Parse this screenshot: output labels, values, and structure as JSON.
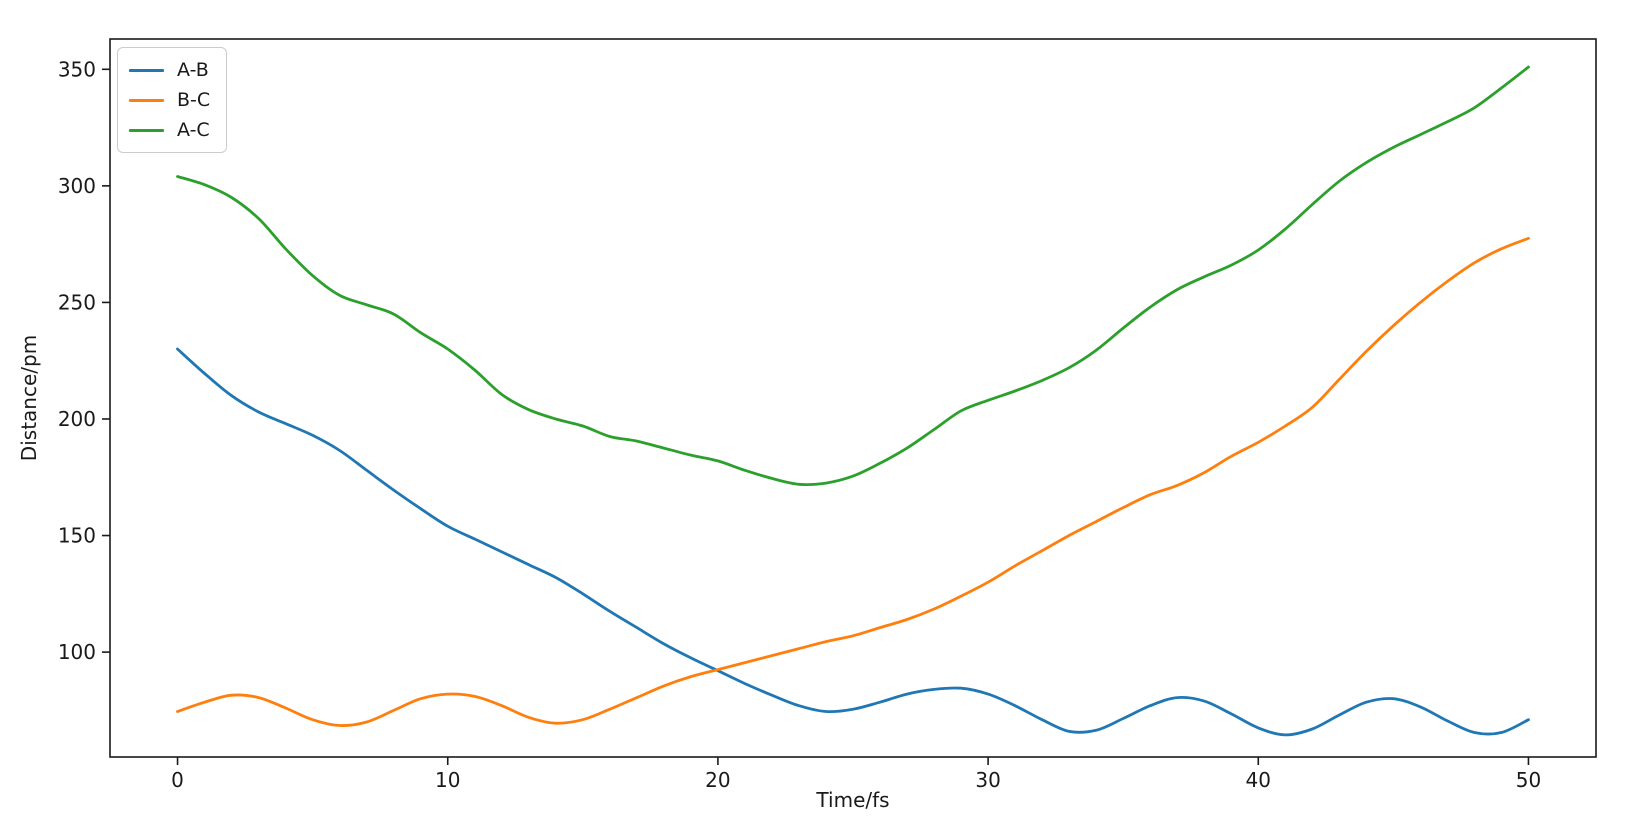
{
  "figure": {
    "background_color": "#ffffff",
    "frame_color": "#1a1a1a",
    "text_color": "#1a1a1a"
  },
  "chart_data": {
    "type": "line",
    "title": "",
    "xlabel": "Time/fs",
    "ylabel": "Distance/pm",
    "xlim": [
      -2.5,
      52.5
    ],
    "ylim": [
      55,
      363
    ],
    "x_ticks": [
      0,
      10,
      20,
      30,
      40,
      50
    ],
    "y_ticks": [
      100,
      150,
      200,
      250,
      300,
      350
    ],
    "grid": false,
    "legend_position": "upper-left",
    "x": [
      0,
      1,
      2,
      3,
      4,
      5,
      6,
      7,
      8,
      9,
      10,
      11,
      12,
      13,
      14,
      15,
      16,
      17,
      18,
      19,
      20,
      21,
      22,
      23,
      24,
      25,
      26,
      27,
      28,
      29,
      30,
      31,
      32,
      33,
      34,
      35,
      36,
      37,
      38,
      39,
      40,
      41,
      42,
      43,
      44,
      45,
      46,
      47,
      48,
      49,
      50
    ],
    "series": [
      {
        "name": "A-B",
        "color": "#1f77b4",
        "values": [
          230,
          219.5,
          210,
          203,
          198,
          193,
          186.5,
          178,
          169.5,
          161.5,
          154,
          148.5,
          143,
          137.5,
          132,
          125,
          117.5,
          110.5,
          103.5,
          97.5,
          92,
          86.5,
          81.5,
          77,
          74.5,
          75.5,
          78.5,
          82,
          84,
          84.5,
          82,
          77,
          71,
          66,
          66.5,
          71.5,
          77,
          80.5,
          79,
          73.5,
          67.5,
          64.5,
          67,
          73,
          78.5,
          80,
          76.5,
          70.5,
          65.5,
          65.5,
          71
        ]
      },
      {
        "name": "B-C",
        "color": "#ff7f0e",
        "values": [
          74.5,
          78.5,
          81.5,
          80.5,
          76,
          71,
          68.5,
          70,
          75,
          80,
          82,
          81,
          77,
          72,
          69.5,
          71,
          75.5,
          80.5,
          85.5,
          89.5,
          92.5,
          95.5,
          98.5,
          101.5,
          104.5,
          107,
          110.5,
          114,
          118.5,
          124,
          130,
          137,
          143.5,
          150,
          156,
          162,
          167.5,
          171.5,
          177,
          184,
          190,
          197,
          205,
          217,
          229,
          240,
          250,
          259,
          267,
          273,
          277.5
        ]
      },
      {
        "name": "A-C",
        "color": "#2ca02c",
        "values": [
          304,
          300.5,
          295,
          286,
          273,
          261.5,
          253,
          249,
          245,
          237,
          230,
          221,
          210.5,
          204,
          200,
          197,
          192.5,
          190.5,
          187.5,
          184.5,
          182,
          178,
          174.5,
          172,
          172.5,
          175.5,
          181,
          187.5,
          195.5,
          203.5,
          208,
          212,
          216.5,
          222,
          229.5,
          239,
          248,
          255.5,
          261,
          266,
          272.5,
          281.5,
          292,
          302,
          310,
          316.5,
          322,
          327.5,
          333.5,
          342,
          351
        ]
      }
    ]
  }
}
